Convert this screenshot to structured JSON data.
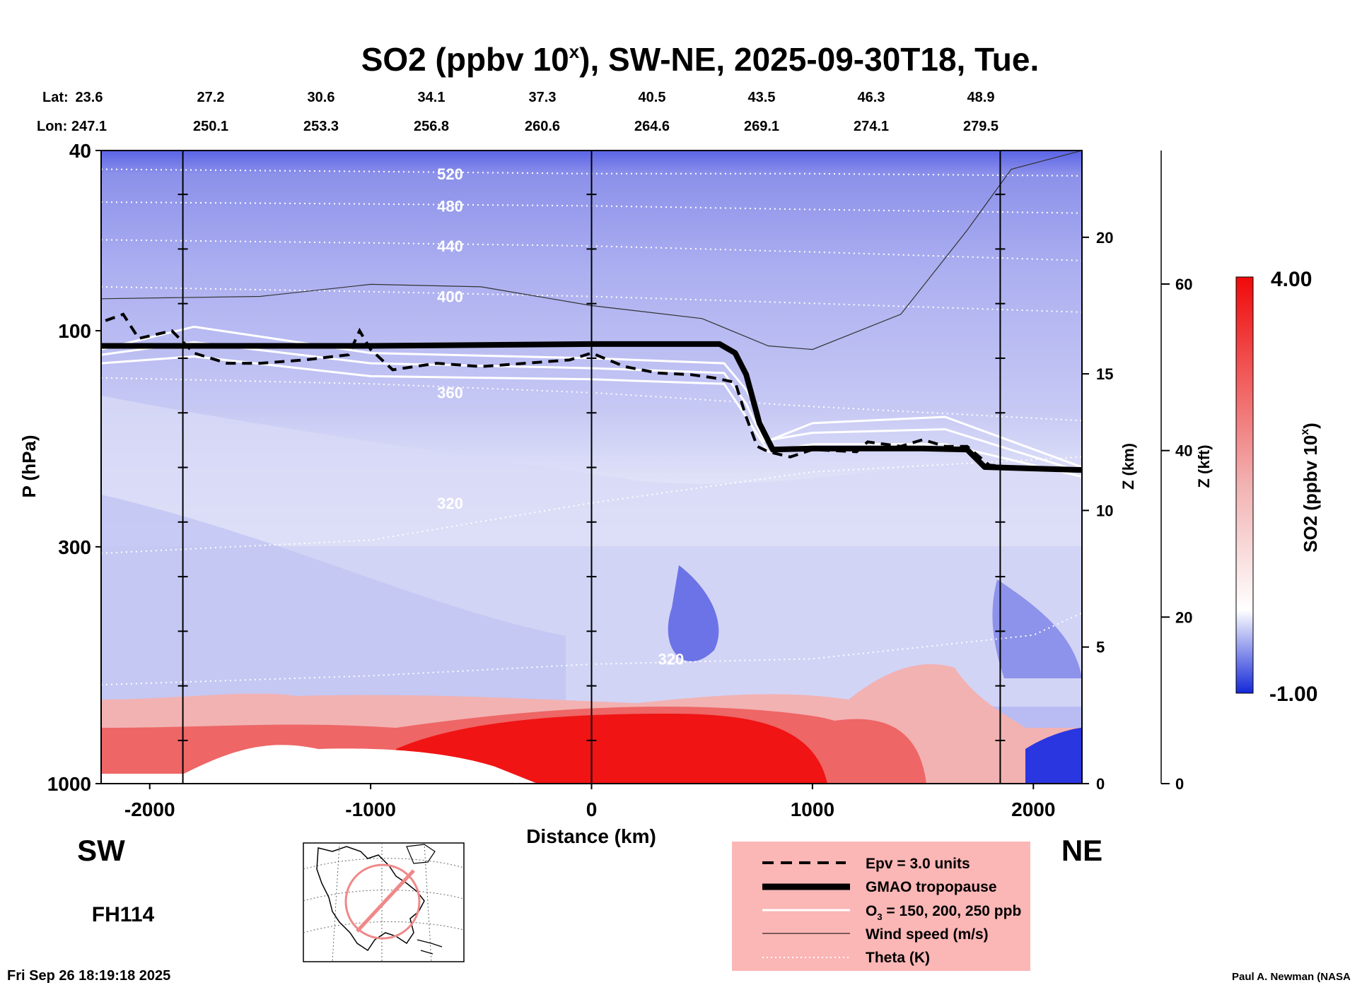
{
  "chart_data": {
    "type": "heatmap",
    "title_main": "SO2 (ppbv 10",
    "title_sup": "x",
    "title_rest": "), SW-NE, 2025-09-30T18, Tue.",
    "lat_label": "Lat:",
    "lon_label": "Lon:",
    "lat_values": [
      "23.6",
      "27.2",
      "30.6",
      "34.1",
      "37.3",
      "40.5",
      "43.5",
      "46.3",
      "48.9"
    ],
    "lon_values": [
      "247.1",
      "250.1",
      "253.3",
      "256.8",
      "260.6",
      "264.6",
      "269.1",
      "274.1",
      "279.5"
    ],
    "xlabel": "Distance (km)",
    "x_ticks": [
      -2000,
      -1000,
      0,
      1000,
      2000
    ],
    "xlim": [
      -2220,
      2220
    ],
    "ylabel": "P (hPa)",
    "y_ticks": [
      40,
      100,
      300,
      1000
    ],
    "ylim": [
      1000,
      40
    ],
    "yscale": "log",
    "right_axis1_label": "Z (km)",
    "right_axis1_ticks": [
      0,
      5,
      10,
      15,
      20
    ],
    "right_axis2_label": "Z (kft)",
    "right_axis2_ticks": [
      0,
      20,
      40,
      60
    ],
    "left_side_label": "SW",
    "right_side_label": "NE",
    "forecast_hour": "FH114",
    "timestamp": "Fri Sep 26 18:19:18 2025",
    "credit": "Paul A. Newman (NASA",
    "colorbar": {
      "label_main": "SO2 (ppbv 10",
      "label_sup": "x",
      "label_rest": ")",
      "max_label": "4.00",
      "min_label": "-1.00",
      "range": [
        -1.0,
        4.0
      ]
    },
    "legend": [
      {
        "label": "Epv = 3.0 units",
        "style": "dashed"
      },
      {
        "label": "GMAO tropopause",
        "style": "thick"
      },
      {
        "label": "O",
        "sub": "3",
        "label_rest": " = 150, 200, 250 ppb",
        "style": "white"
      },
      {
        "label": "Wind speed (m/s)",
        "style": "thin"
      },
      {
        "label": "Theta (K)",
        "style": "dotted"
      }
    ],
    "theta_contours": [
      {
        "label": "520",
        "points": [
          [
            -2220,
            44
          ],
          [
            -1000,
            44.5
          ],
          [
            0,
            45
          ],
          [
            1000,
            45
          ],
          [
            2220,
            45.5
          ]
        ]
      },
      {
        "label": "480",
        "points": [
          [
            -2220,
            52
          ],
          [
            -1000,
            52.5
          ],
          [
            0,
            53
          ],
          [
            1000,
            54
          ],
          [
            2220,
            55
          ]
        ]
      },
      {
        "label": "440",
        "points": [
          [
            -2220,
            63
          ],
          [
            -1000,
            64
          ],
          [
            0,
            65
          ],
          [
            1000,
            67
          ],
          [
            2220,
            70
          ]
        ]
      },
      {
        "label": "400",
        "points": [
          [
            -2220,
            80
          ],
          [
            -1000,
            82
          ],
          [
            0,
            84
          ],
          [
            1000,
            87
          ],
          [
            2220,
            91
          ]
        ]
      },
      {
        "label": "360",
        "points": [
          [
            -2220,
            127
          ],
          [
            -1000,
            131
          ],
          [
            0,
            137
          ],
          [
            1000,
            147
          ],
          [
            2220,
            158
          ]
        ]
      },
      {
        "label": "320",
        "points": [
          [
            -2220,
            310
          ],
          [
            -1000,
            290
          ],
          [
            0,
            240
          ],
          [
            1000,
            205
          ],
          [
            2220,
            190
          ]
        ]
      },
      {
        "label": "320",
        "points": [
          [
            -2220,
            605
          ],
          [
            -1000,
            578
          ],
          [
            0,
            545
          ],
          [
            1000,
            530
          ],
          [
            2000,
            470
          ],
          [
            2220,
            420
          ]
        ]
      }
    ],
    "tropopause": [
      [
        -2220,
        108
      ],
      [
        -1000,
        108
      ],
      [
        0,
        107
      ],
      [
        300,
        107
      ],
      [
        580,
        107
      ],
      [
        650,
        112
      ],
      [
        700,
        125
      ],
      [
        760,
        160
      ],
      [
        820,
        183
      ],
      [
        1000,
        182
      ],
      [
        1500,
        182
      ],
      [
        1700,
        183
      ],
      [
        1780,
        200
      ],
      [
        2220,
        203
      ]
    ],
    "epv_line": [
      [
        -2200,
        95
      ],
      [
        -2120,
        92
      ],
      [
        -2050,
        104
      ],
      [
        -1900,
        100
      ],
      [
        -1800,
        112
      ],
      [
        -1650,
        118
      ],
      [
        -1500,
        118
      ],
      [
        -1300,
        116
      ],
      [
        -1100,
        113
      ],
      [
        -1050,
        100
      ],
      [
        -1000,
        110
      ],
      [
        -900,
        122
      ],
      [
        -700,
        118
      ],
      [
        -500,
        120
      ],
      [
        -300,
        118
      ],
      [
        -100,
        116
      ],
      [
        0,
        112
      ],
      [
        150,
        120
      ],
      [
        300,
        124
      ],
      [
        450,
        125
      ],
      [
        550,
        127
      ],
      [
        650,
        130
      ],
      [
        700,
        155
      ],
      [
        750,
        180
      ],
      [
        800,
        185
      ],
      [
        900,
        190
      ],
      [
        1000,
        183
      ],
      [
        1200,
        185
      ],
      [
        1250,
        176
      ],
      [
        1400,
        180
      ],
      [
        1500,
        174
      ],
      [
        1600,
        180
      ],
      [
        1700,
        180
      ],
      [
        1800,
        198
      ],
      [
        2000,
        202
      ],
      [
        2220,
        204
      ]
    ],
    "wind_20_contour": [
      [
        -2220,
        85
      ],
      [
        -1500,
        84
      ],
      [
        -1000,
        79
      ],
      [
        -500,
        80
      ],
      [
        0,
        88
      ],
      [
        500,
        94
      ],
      [
        800,
        108
      ],
      [
        1000,
        110
      ],
      [
        1400,
        92
      ],
      [
        1700,
        60
      ],
      [
        1900,
        44
      ],
      [
        2220,
        40
      ]
    ],
    "o3_contours": [
      [
        [
          -2220,
          110
        ],
        [
          -1800,
          98
        ],
        [
          -1000,
          112
        ],
        [
          0,
          115
        ],
        [
          600,
          118
        ],
        [
          700,
          135
        ],
        [
          750,
          150
        ],
        [
          800,
          175
        ],
        [
          1000,
          160
        ],
        [
          1600,
          155
        ],
        [
          2220,
          200
        ]
      ],
      [
        [
          -2220,
          113
        ],
        [
          -1800,
          106
        ],
        [
          -1000,
          118
        ],
        [
          0,
          121
        ],
        [
          600,
          124
        ],
        [
          700,
          145
        ],
        [
          780,
          175
        ],
        [
          1000,
          168
        ],
        [
          1600,
          165
        ],
        [
          2220,
          205
        ]
      ],
      [
        [
          -2220,
          118
        ],
        [
          -1800,
          114
        ],
        [
          -1000,
          126
        ],
        [
          0,
          128
        ],
        [
          600,
          131
        ],
        [
          700,
          155
        ],
        [
          800,
          185
        ],
        [
          1000,
          178
        ],
        [
          1600,
          178
        ],
        [
          2220,
          210
        ]
      ]
    ]
  }
}
